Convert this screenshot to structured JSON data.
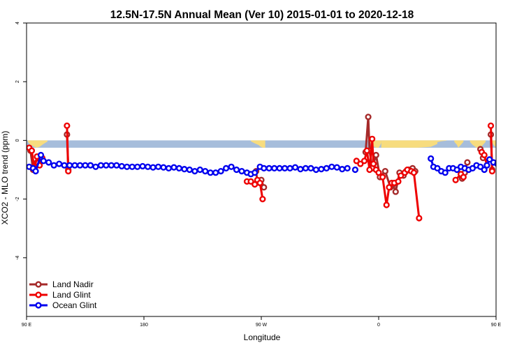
{
  "chart_data": {
    "type": "line",
    "title": "12.5N-17.5N Annual Mean (Ver 10)   2015-01-01 to 2020-12-18",
    "xlabel": "Longitude",
    "ylabel": "XCO2 - MLO trend (ppm)",
    "xlim": [
      90,
      450
    ],
    "ylim": [
      -6,
      4
    ],
    "x_ticks": [
      {
        "value": 90,
        "label": "90 E"
      },
      {
        "value": 180,
        "label": "180"
      },
      {
        "value": 270,
        "label": "90 W"
      },
      {
        "value": 360,
        "label": "0"
      },
      {
        "value": 450,
        "label": "90 E"
      },
      {
        "value": 540,
        "label": "180"
      }
    ],
    "y_ticks": [
      {
        "value": 4,
        "label": "4"
      },
      {
        "value": 2,
        "label": "2"
      },
      {
        "value": 0,
        "label": "0"
      },
      {
        "value": -2,
        "label": "-2"
      },
      {
        "value": -4,
        "label": "-4"
      }
    ],
    "grid": false,
    "legend_position": "bottom-left",
    "land_band": {
      "top": 0,
      "bottom": -0.25,
      "ocean_color": "#a6bddb",
      "land_color": "#f7dc7e",
      "land_profiles": [
        {
          "x": [
            91,
            93,
            96,
            98,
            100,
            103,
            106
          ],
          "depth": [
            0.05,
            0.15,
            0.22,
            0.25,
            0.22,
            0.12,
            0.04
          ]
        },
        {
          "x": [
            262,
            264,
            266,
            268,
            269,
            271,
            273
          ],
          "depth": [
            0.03,
            0.08,
            0.12,
            0.16,
            0.2,
            0.25,
            0.25
          ]
        },
        {
          "x": [
            352,
            354,
            356,
            358,
            360,
            361,
            362
          ],
          "depth": [
            0.05,
            0.12,
            0.2,
            0.25,
            0.25,
            0.18,
            0.08
          ]
        },
        {
          "x": [
            362,
            375,
            390,
            400,
            405
          ],
          "depth": [
            0.25,
            0.25,
            0.25,
            0.22,
            0.12
          ]
        },
        {
          "x": [
            405,
            408,
            412
          ],
          "depth": [
            0.06,
            0.03,
            0.01
          ]
        },
        {
          "x": [
            418,
            420,
            421,
            423,
            425
          ],
          "depth": [
            0.05,
            0.15,
            0.25,
            0.15,
            0.05
          ]
        },
        {
          "x": [
            430,
            432,
            435,
            438,
            440,
            442
          ],
          "depth": [
            0.05,
            0.15,
            0.25,
            0.25,
            0.15,
            0.05
          ]
        },
        {
          "x": [
            447,
            448,
            450,
            451,
            452
          ],
          "depth": [
            0.06,
            0.15,
            0.25,
            0.15,
            0.06
          ]
        }
      ]
    },
    "series": [
      {
        "name": "Land Nadir",
        "color": "#a52a2a",
        "segments": [
          [
            [
              93,
              -0.35
            ],
            [
              95,
              -1.0
            ],
            [
              98,
              -0.75
            ],
            [
              100,
              -0.6
            ]
          ],
          [
            [
              121,
              0.2
            ],
            [
              122,
              -1.0
            ]
          ],
          [
            [
              266,
              -1.05
            ],
            [
              267,
              -1.4
            ],
            [
              270,
              -1.35
            ],
            [
              272,
              -1.6
            ]
          ],
          [
            [
              350,
              -0.4
            ],
            [
              352,
              0.8
            ],
            [
              353,
              -0.35
            ],
            [
              355,
              -0.95
            ],
            [
              358,
              -0.5
            ],
            [
              361,
              -1.25
            ],
            [
              365,
              -1.05
            ],
            [
              369,
              -1.6
            ],
            [
              371,
              -1.5
            ],
            [
              373,
              -1.75
            ],
            [
              376,
              -1.1
            ],
            [
              379,
              -1.2
            ],
            [
              381,
              -1.05
            ],
            [
              383,
              -1.0
            ],
            [
              386,
              -0.95
            ],
            [
              388,
              -1.05
            ]
          ],
          [
            [
              424,
              -1.3
            ],
            [
              426,
              -1.1
            ],
            [
              428,
              -0.75
            ]
          ],
          [
            [
              438,
              -0.3
            ],
            [
              440,
              -0.6
            ]
          ],
          [
            [
              446,
              0.2
            ],
            [
              447,
              -1.0
            ]
          ]
        ]
      },
      {
        "name": "Land Glint",
        "color": "#ee0000",
        "segments": [
          [
            [
              92,
              -0.25
            ],
            [
              94,
              -0.35
            ],
            [
              96,
              -1.0
            ],
            [
              98,
              -0.55
            ],
            [
              100,
              -0.85
            ],
            [
              102,
              -0.6
            ]
          ],
          [
            [
              121,
              0.5
            ],
            [
              122,
              -1.05
            ]
          ],
          [
            [
              259,
              -1.4
            ],
            [
              262,
              -1.4
            ],
            [
              265,
              -1.5
            ],
            [
              267,
              -1.35
            ],
            [
              269,
              -1.45
            ],
            [
              271,
              -2.0
            ]
          ],
          [
            [
              343,
              -0.7
            ],
            [
              346,
              -0.8
            ],
            [
              349,
              -0.7
            ],
            [
              351,
              -0.35
            ],
            [
              353,
              -1.0
            ],
            [
              355,
              0.05
            ],
            [
              356,
              -0.8
            ],
            [
              358,
              -1.0
            ],
            [
              360,
              -1.1
            ],
            [
              363,
              -1.25
            ],
            [
              366,
              -2.2
            ],
            [
              368,
              -1.6
            ],
            [
              370,
              -1.45
            ],
            [
              372,
              -1.45
            ],
            [
              375,
              -1.4
            ],
            [
              377,
              -1.2
            ],
            [
              380,
              -1.1
            ],
            [
              382,
              -1.0
            ],
            [
              385,
              -1.05
            ],
            [
              387,
              -1.1
            ],
            [
              391,
              -2.65
            ]
          ],
          [
            [
              419,
              -1.35
            ],
            [
              423,
              -1.15
            ],
            [
              425,
              -1.25
            ]
          ],
          [
            [
              439,
              -0.4
            ],
            [
              441,
              -0.5
            ],
            [
              443,
              -0.85
            ]
          ],
          [
            [
              446,
              0.5
            ],
            [
              447,
              -1.05
            ]
          ]
        ]
      },
      {
        "name": "Ocean Glint",
        "color": "#0000ee",
        "segments": [
          [
            [
              92,
              -0.9
            ],
            [
              95,
              -0.95
            ],
            [
              97,
              -1.05
            ],
            [
              101,
              -0.5
            ],
            [
              103,
              -0.7
            ],
            [
              107,
              -0.75
            ],
            [
              111,
              -0.85
            ],
            [
              115,
              -0.8
            ],
            [
              119,
              -0.85
            ],
            [
              123,
              -0.85
            ],
            [
              127,
              -0.85
            ],
            [
              131,
              -0.85
            ],
            [
              135,
              -0.85
            ],
            [
              139,
              -0.85
            ],
            [
              143,
              -0.9
            ],
            [
              147,
              -0.85
            ],
            [
              151,
              -0.85
            ],
            [
              155,
              -0.85
            ],
            [
              159,
              -0.85
            ],
            [
              163,
              -0.88
            ],
            [
              167,
              -0.9
            ],
            [
              171,
              -0.9
            ],
            [
              175,
              -0.9
            ],
            [
              179,
              -0.88
            ],
            [
              183,
              -0.9
            ],
            [
              187,
              -0.92
            ],
            [
              191,
              -0.9
            ],
            [
              195,
              -0.92
            ],
            [
              199,
              -0.95
            ],
            [
              203,
              -0.92
            ],
            [
              207,
              -0.95
            ],
            [
              211,
              -0.98
            ],
            [
              215,
              -1.0
            ],
            [
              219,
              -1.05
            ],
            [
              223,
              -1.0
            ],
            [
              227,
              -1.05
            ],
            [
              231,
              -1.1
            ],
            [
              235,
              -1.1
            ],
            [
              239,
              -1.05
            ],
            [
              243,
              -0.95
            ],
            [
              247,
              -0.9
            ],
            [
              251,
              -1.0
            ],
            [
              255,
              -1.05
            ],
            [
              259,
              -1.1
            ],
            [
              262,
              -1.15
            ],
            [
              265,
              -1.1
            ],
            [
              269,
              -0.9
            ],
            [
              272,
              -0.95
            ],
            [
              276,
              -0.95
            ],
            [
              280,
              -0.95
            ],
            [
              284,
              -0.95
            ],
            [
              288,
              -0.95
            ],
            [
              292,
              -0.95
            ],
            [
              296,
              -0.92
            ],
            [
              300,
              -0.98
            ],
            [
              304,
              -0.95
            ],
            [
              308,
              -0.95
            ],
            [
              312,
              -1.0
            ],
            [
              316,
              -0.98
            ],
            [
              320,
              -0.95
            ],
            [
              324,
              -0.9
            ],
            [
              328,
              -0.92
            ],
            [
              332,
              -0.98
            ],
            [
              336,
              -0.95
            ]
          ],
          [
            [
              342,
              -1.0
            ]
          ],
          [
            [
              400,
              -0.62
            ],
            [
              402,
              -0.9
            ],
            [
              405,
              -0.95
            ],
            [
              408,
              -1.05
            ],
            [
              411,
              -1.1
            ],
            [
              414,
              -0.95
            ],
            [
              417,
              -0.95
            ],
            [
              420,
              -1.0
            ],
            [
              423,
              -0.9
            ],
            [
              426,
              -0.95
            ],
            [
              429,
              -1.0
            ],
            [
              432,
              -0.95
            ],
            [
              435,
              -0.85
            ],
            [
              438,
              -0.9
            ],
            [
              441,
              -1.0
            ],
            [
              443,
              -0.85
            ],
            [
              445,
              -0.65
            ],
            [
              448,
              -0.75
            ],
            [
              451,
              -0.8
            ],
            [
              454,
              -0.85
            ],
            [
              457,
              -0.85
            ],
            [
              460,
              -0.85
            ],
            [
              463,
              -0.85
            ],
            [
              466,
              -0.88
            ],
            [
              469,
              -0.9
            ],
            [
              472,
              -0.9
            ],
            [
              475,
              -0.88
            ],
            [
              478,
              -0.9
            ],
            [
              481,
              -0.92
            ],
            [
              484,
              -0.9
            ],
            [
              487,
              -0.92
            ],
            [
              490,
              -0.95
            ],
            [
              493,
              -0.92
            ],
            [
              496,
              -0.95
            ]
          ]
        ]
      }
    ]
  }
}
